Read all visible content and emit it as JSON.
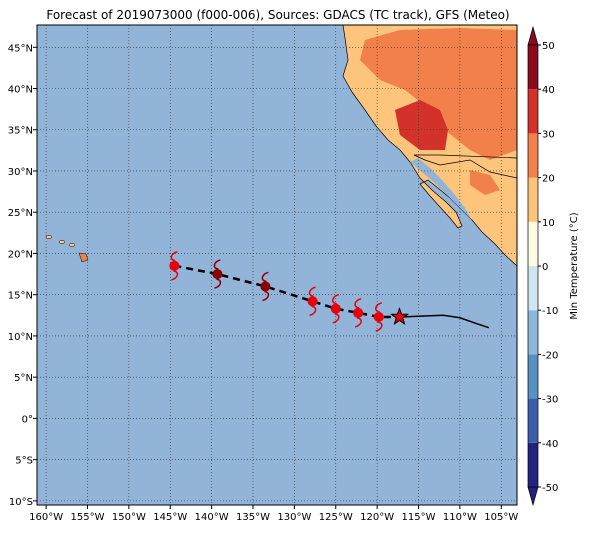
{
  "chart_data": {
    "type": "map",
    "title": "Forecast of 2019073000 (f000-006), Sources: GDACS (TC track), GFS (Meteo)",
    "xlim": [
      -161.1,
      -103.1
    ],
    "ylim": [
      -10.5,
      47.7
    ],
    "xticks": [
      {
        "value": -160,
        "label": "160°W"
      },
      {
        "value": -155,
        "label": "155°W"
      },
      {
        "value": -150,
        "label": "150°W"
      },
      {
        "value": -145,
        "label": "145°W"
      },
      {
        "value": -140,
        "label": "140°W"
      },
      {
        "value": -135,
        "label": "135°W"
      },
      {
        "value": -130,
        "label": "130°W"
      },
      {
        "value": -125,
        "label": "125°W"
      },
      {
        "value": -120,
        "label": "120°W"
      },
      {
        "value": -115,
        "label": "115°W"
      },
      {
        "value": -110,
        "label": "110°W"
      },
      {
        "value": -105,
        "label": "105°W"
      }
    ],
    "yticks": [
      {
        "value": -10,
        "label": "10°S"
      },
      {
        "value": -5,
        "label": "5°S"
      },
      {
        "value": 0,
        "label": "0°"
      },
      {
        "value": 5,
        "label": "5°N"
      },
      {
        "value": 10,
        "label": "10°N"
      },
      {
        "value": 15,
        "label": "15°N"
      },
      {
        "value": 20,
        "label": "20°N"
      },
      {
        "value": 25,
        "label": "25°N"
      },
      {
        "value": 30,
        "label": "30°N"
      },
      {
        "value": 35,
        "label": "35°N"
      },
      {
        "value": 40,
        "label": "40°N"
      },
      {
        "value": 45,
        "label": "45°N"
      }
    ],
    "grid": true,
    "track": {
      "x": [
        -144.5,
        -139.3,
        -133.5,
        -127.8,
        -125,
        -122.3,
        -119.8
      ],
      "y": [
        18.5,
        17.5,
        16,
        14.2,
        13.3,
        12.8,
        12.3
      ],
      "colors": [
        "#e8000b",
        "#8b0000",
        "#8b0000",
        "#e8000b",
        "#e8000b",
        "#e8000b",
        "#e8000b"
      ]
    },
    "forecast": {
      "x": [
        -117.3,
        -112,
        -110,
        -108,
        -106.5
      ],
      "y": [
        12.3,
        12.5,
        12.2,
        11.5,
        11
      ],
      "color": "#000000"
    },
    "colorbar": {
      "label": "Min Temperature (°C)",
      "lim": [
        -50,
        50
      ],
      "ticks": [
        -50,
        -40,
        -30,
        -20,
        -10,
        0,
        10,
        20,
        30,
        40,
        50
      ],
      "colors": [
        "#22237f",
        "#3a5fa8",
        "#5a8fc2",
        "#8ab8d9",
        "#cfe6f0",
        "#fbfbe0",
        "#fdc47c",
        "#f1804b",
        "#d2322a",
        "#8c0a1e"
      ]
    }
  }
}
